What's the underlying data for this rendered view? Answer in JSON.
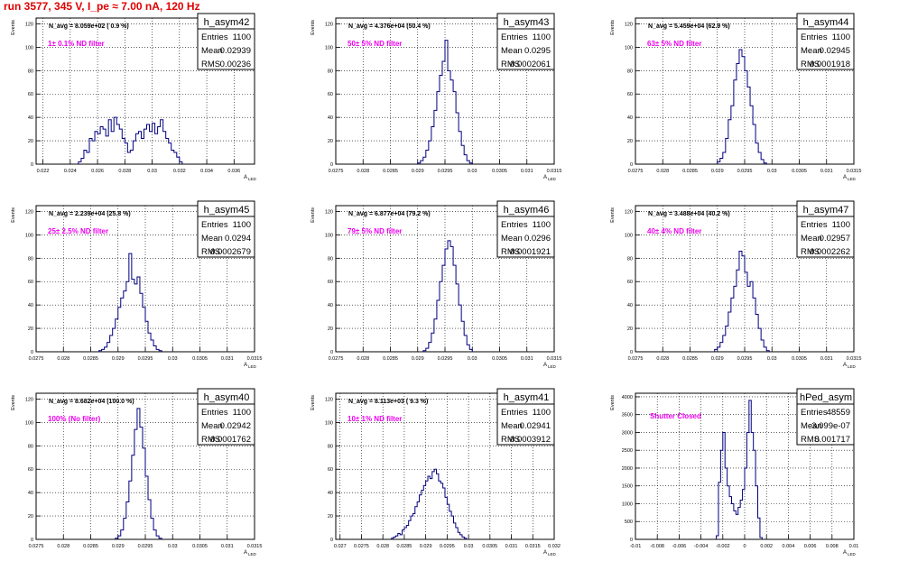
{
  "header": {
    "run_title": "run 3577,   345 V, I_pe ≈ 7.00 nA, 120 Hz"
  },
  "colors": {
    "histogram": "#000080",
    "annotation": "#ee00ee",
    "header": "#e00000",
    "grid": "#000000"
  },
  "labels": {
    "ylabel": "Events",
    "xlabel": "A",
    "xlabel_sub": "LED"
  },
  "stat_labels": {
    "entries": "Entries",
    "mean": "Mean",
    "rms": "RMS"
  },
  "chart_data": [
    {
      "type": "bar",
      "hist_name": "h_asym42",
      "navg": "N_avg = 8.059e+02 ( 0.9 %)",
      "annotation": "1± 0.1% ND filter",
      "stats": {
        "entries": "1100",
        "mean": "0.02939",
        "rms": "0.00236"
      },
      "xlim": [
        0.0215,
        0.0375
      ],
      "ylim": [
        0,
        125
      ],
      "xticks": [
        0.022,
        0.024,
        0.026,
        0.028,
        0.03,
        0.032,
        0.034,
        0.036
      ],
      "xtick_labels": [
        "0.022",
        "0.024",
        "0.026",
        "0.028",
        "0.03",
        "0.032",
        "0.034",
        "0.036"
      ],
      "yticks": [
        0,
        20,
        40,
        60,
        80,
        100,
        120
      ],
      "ytick_labels": [
        "0",
        "20",
        "40",
        "60",
        "80",
        "100",
        "120"
      ],
      "bins_x0": 0.0246,
      "bin_width": 0.0002,
      "counts": [
        2,
        5,
        12,
        10,
        22,
        20,
        28,
        26,
        32,
        30,
        24,
        38,
        28,
        40,
        34,
        30,
        22,
        18,
        10,
        12,
        20,
        26,
        28,
        22,
        30,
        34,
        28,
        35,
        26,
        32,
        38,
        28,
        22,
        18,
        12,
        10,
        6,
        2
      ]
    },
    {
      "type": "bar",
      "hist_name": "h_asym43",
      "navg": "N_avg = 4.376e+04 (50.4 %)",
      "annotation": "50± 5% ND filter",
      "stats": {
        "entries": "1100",
        "mean": "0.0295",
        "rms": "0.0002061"
      },
      "xlim": [
        0.0275,
        0.0315
      ],
      "ylim": [
        0,
        125
      ],
      "xticks": [
        0.0275,
        0.028,
        0.0285,
        0.029,
        0.0295,
        0.03,
        0.0305,
        0.031,
        0.0315
      ],
      "xtick_labels": [
        "0.0275",
        "0.028",
        "0.0285",
        "0.029",
        "0.0295",
        "0.03",
        "0.0305",
        "0.031",
        "0.0315"
      ],
      "yticks": [
        0,
        20,
        40,
        60,
        80,
        100,
        120
      ],
      "ytick_labels": [
        "0",
        "20",
        "40",
        "60",
        "80",
        "100",
        "120"
      ],
      "bins_x0": 0.029,
      "bin_width": 5e-05,
      "counts": [
        1,
        3,
        6,
        12,
        20,
        32,
        46,
        62,
        76,
        88,
        106,
        80,
        72,
        62,
        44,
        28,
        16,
        8,
        3,
        1
      ]
    },
    {
      "type": "bar",
      "hist_name": "h_asym44",
      "navg": "N_avg = 5.459e+04 (62.9 %)",
      "annotation": "63± 5% ND filter",
      "stats": {
        "entries": "1100",
        "mean": "0.02945",
        "rms": "0.0001918"
      },
      "xlim": [
        0.0275,
        0.0315
      ],
      "ylim": [
        0,
        125
      ],
      "xticks": [
        0.0275,
        0.028,
        0.0285,
        0.029,
        0.0295,
        0.03,
        0.0305,
        0.031,
        0.0315
      ],
      "xtick_labels": [
        "0.0275",
        "0.028",
        "0.0285",
        "0.029",
        "0.0295",
        "0.03",
        "0.0305",
        "0.031",
        "0.0315"
      ],
      "yticks": [
        0,
        20,
        40,
        60,
        80,
        100,
        120
      ],
      "ytick_labels": [
        "0",
        "20",
        "40",
        "60",
        "80",
        "100",
        "120"
      ],
      "bins_x0": 0.029,
      "bin_width": 5e-05,
      "counts": [
        2,
        5,
        10,
        22,
        38,
        50,
        72,
        86,
        98,
        92,
        80,
        66,
        50,
        34,
        18,
        10,
        4,
        1
      ]
    },
    {
      "type": "bar",
      "hist_name": "h_asym45",
      "navg": "N_avg = 2.239e+04 (25.8 %)",
      "annotation": "25± 2.5% ND filter",
      "stats": {
        "entries": "1100",
        "mean": "0.0294",
        "rms": "0.0002679"
      },
      "xlim": [
        0.0275,
        0.0315
      ],
      "ylim": [
        0,
        125
      ],
      "xticks": [
        0.0275,
        0.028,
        0.0285,
        0.029,
        0.0295,
        0.03,
        0.0305,
        0.031,
        0.0315
      ],
      "xtick_labels": [
        "0.0275",
        "0.028",
        "0.0285",
        "0.029",
        "0.0295",
        "0.03",
        "0.0305",
        "0.031",
        "0.0315"
      ],
      "yticks": [
        0,
        20,
        40,
        60,
        80,
        100,
        120
      ],
      "ytick_labels": [
        "0",
        "20",
        "40",
        "60",
        "80",
        "100",
        "120"
      ],
      "bins_x0": 0.02865,
      "bin_width": 5e-05,
      "counts": [
        1,
        2,
        4,
        8,
        14,
        20,
        28,
        38,
        46,
        52,
        60,
        84,
        62,
        58,
        64,
        50,
        38,
        26,
        16,
        10,
        5,
        2,
        1
      ]
    },
    {
      "type": "bar",
      "hist_name": "h_asym46",
      "navg": "N_avg = 6.877e+04 (79.2 %)",
      "annotation": "79± 5% ND filter",
      "stats": {
        "entries": "1100",
        "mean": "0.0296",
        "rms": "0.0001921"
      },
      "xlim": [
        0.0275,
        0.0315
      ],
      "ylim": [
        0,
        125
      ],
      "xticks": [
        0.0275,
        0.028,
        0.0285,
        0.029,
        0.0295,
        0.03,
        0.0305,
        0.031,
        0.0315
      ],
      "xtick_labels": [
        "0.0275",
        "0.028",
        "0.0285",
        "0.029",
        "0.0295",
        "0.03",
        "0.0305",
        "0.031",
        "0.0315"
      ],
      "yticks": [
        0,
        20,
        40,
        60,
        80,
        100,
        120
      ],
      "ytick_labels": [
        "0",
        "20",
        "40",
        "60",
        "80",
        "100",
        "120"
      ],
      "bins_x0": 0.0291,
      "bin_width": 5e-05,
      "counts": [
        1,
        3,
        8,
        16,
        28,
        44,
        60,
        74,
        88,
        95,
        90,
        74,
        58,
        40,
        26,
        14,
        6,
        2
      ]
    },
    {
      "type": "bar",
      "hist_name": "h_asym47",
      "navg": "N_avg = 3.488e+04 (40.2 %)",
      "annotation": "40± 4% ND filter",
      "stats": {
        "entries": "1100",
        "mean": "0.02957",
        "rms": "0.0002262"
      },
      "xlim": [
        0.0275,
        0.0315
      ],
      "ylim": [
        0,
        125
      ],
      "xticks": [
        0.0275,
        0.028,
        0.0285,
        0.029,
        0.0295,
        0.03,
        0.0305,
        0.031,
        0.0315
      ],
      "xtick_labels": [
        "0.0275",
        "0.028",
        "0.0285",
        "0.029",
        "0.0295",
        "0.03",
        "0.0305",
        "0.031",
        "0.0315"
      ],
      "yticks": [
        0,
        20,
        40,
        60,
        80,
        100,
        120
      ],
      "ytick_labels": [
        "0",
        "20",
        "40",
        "60",
        "80",
        "100",
        "120"
      ],
      "bins_x0": 0.02895,
      "bin_width": 5e-05,
      "counts": [
        2,
        4,
        8,
        14,
        22,
        34,
        46,
        56,
        70,
        86,
        82,
        68,
        56,
        60,
        46,
        32,
        20,
        10,
        4,
        1
      ]
    },
    {
      "type": "bar",
      "hist_name": "h_asym40",
      "navg": "N_avg = 8.682e+04 (100.0 %)",
      "annotation": "100% (No filter)",
      "stats": {
        "entries": "1100",
        "mean": "0.02942",
        "rms": "0.0001762"
      },
      "xlim": [
        0.0275,
        0.0315
      ],
      "ylim": [
        0,
        125
      ],
      "xticks": [
        0.0275,
        0.028,
        0.0285,
        0.029,
        0.0295,
        0.03,
        0.0305,
        0.031,
        0.0315
      ],
      "xtick_labels": [
        "0.0275",
        "0.028",
        "0.0285",
        "0.029",
        "0.0295",
        "0.03",
        "0.0305",
        "0.031",
        "0.0315"
      ],
      "yticks": [
        0,
        20,
        40,
        60,
        80,
        100,
        120
      ],
      "ytick_labels": [
        "0",
        "20",
        "40",
        "60",
        "80",
        "100",
        "120"
      ],
      "bins_x0": 0.02895,
      "bin_width": 5e-05,
      "counts": [
        1,
        3,
        8,
        18,
        32,
        50,
        72,
        94,
        112,
        96,
        78,
        54,
        34,
        18,
        8,
        3,
        1
      ]
    },
    {
      "type": "bar",
      "hist_name": "h_asym41",
      "navg": "N_avg = 8.113e+03 ( 9.3 %)",
      "annotation": "10± 1% ND filter",
      "stats": {
        "entries": "1100",
        "mean": "0.02941",
        "rms": "0.0003912"
      },
      "xlim": [
        0.0269,
        0.032
      ],
      "ylim": [
        0,
        125
      ],
      "xticks": [
        0.027,
        0.0275,
        0.028,
        0.0285,
        0.029,
        0.0295,
        0.03,
        0.0305,
        0.031,
        0.0315,
        0.032
      ],
      "xtick_labels": [
        "0.027",
        "0.0275",
        "0.028",
        "0.0285",
        "0.029",
        "0.0295",
        "0.03",
        "0.0305",
        "0.031",
        "0.0315",
        "0.032"
      ],
      "yticks": [
        0,
        20,
        40,
        60,
        80,
        100,
        120
      ],
      "ytick_labels": [
        "0",
        "20",
        "40",
        "60",
        "80",
        "100",
        "120"
      ],
      "bins_x0": 0.0282,
      "bin_width": 5e-05,
      "counts": [
        1,
        2,
        3,
        5,
        4,
        8,
        10,
        12,
        16,
        20,
        22,
        28,
        32,
        38,
        42,
        46,
        50,
        54,
        52,
        58,
        60,
        56,
        50,
        48,
        44,
        36,
        30,
        24,
        20,
        14,
        10,
        6,
        4,
        2,
        1
      ]
    },
    {
      "type": "bar",
      "hist_name": "hPed_asym",
      "navg": "",
      "annotation": "Shutter Closed",
      "stats": {
        "entries": "48559",
        "mean": "-3.099e-07",
        "rms": "0.001717"
      },
      "xlim": [
        -0.01,
        0.01
      ],
      "ylim": [
        0,
        4100
      ],
      "xticks": [
        -0.01,
        -0.008,
        -0.006,
        -0.004,
        -0.002,
        0,
        0.002,
        0.004,
        0.006,
        0.008,
        0.01
      ],
      "xtick_labels": [
        "-0.01",
        "-0.008",
        "-0.006",
        "-0.004",
        "-0.002",
        "0",
        "0.002",
        "0.004",
        "0.006",
        "0.008",
        "0.01"
      ],
      "yticks": [
        0,
        500,
        1000,
        1500,
        2000,
        2500,
        3000,
        3500,
        4000
      ],
      "ytick_labels": [
        "0",
        "500",
        "1000",
        "1500",
        "2000",
        "2500",
        "3000",
        "3500",
        "4000"
      ],
      "bins_x0": -0.0026,
      "bin_width": 0.0002,
      "counts": [
        100,
        1600,
        2500,
        3000,
        2000,
        1500,
        1200,
        1000,
        800,
        700,
        900,
        1100,
        1400,
        2000,
        3000,
        3900,
        3000,
        2500,
        1500,
        600,
        50
      ]
    }
  ]
}
